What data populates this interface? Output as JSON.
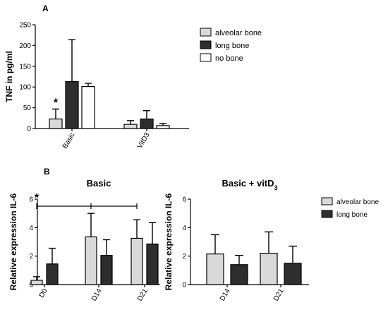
{
  "colors": {
    "alveolar": "#d9d9d9",
    "long": "#2e2e2e",
    "none": "#ffffff",
    "stroke": "#000000"
  },
  "chart_data": [
    {
      "panel": "A",
      "type": "bar",
      "title": "",
      "ylabel": "TNF in pg/ml",
      "ylim": [
        0,
        250
      ],
      "yticks": [
        0,
        50,
        100,
        150,
        200,
        250
      ],
      "categories": [
        "Basic",
        "VitD3"
      ],
      "series": [
        {
          "name": "alveolar bone",
          "color_key": "alveolar",
          "values": [
            23,
            10
          ],
          "errors": [
            24,
            9
          ]
        },
        {
          "name": "long bone",
          "color_key": "long",
          "values": [
            113,
            23
          ],
          "errors": [
            101,
            20
          ]
        },
        {
          "name": "no bone",
          "color_key": "none",
          "values": [
            101,
            7
          ],
          "errors": [
            8,
            5
          ]
        }
      ],
      "annotations": [
        {
          "text": "*",
          "category": "Basic",
          "series": "alveolar bone"
        }
      ],
      "legend": "right"
    },
    {
      "panel": "B",
      "type": "bar",
      "title": "Basic",
      "ylabel": "Relative expression IL-6",
      "ylim": [
        0,
        6
      ],
      "yticks": [
        0,
        2,
        4,
        6
      ],
      "categories": [
        "D0",
        "D14",
        "D21"
      ],
      "series": [
        {
          "name": "alveolar bone",
          "color_key": "alveolar",
          "values": [
            0.3,
            3.35,
            3.25
          ],
          "errors": [
            0.25,
            1.65,
            1.3
          ]
        },
        {
          "name": "long bone",
          "color_key": "long",
          "values": [
            1.45,
            2.05,
            2.85
          ],
          "errors": [
            1.1,
            1.1,
            1.5
          ]
        }
      ],
      "annotations": [
        {
          "text": "*",
          "bracket": [
            "D0",
            "D21"
          ]
        }
      ]
    },
    {
      "panel": "B",
      "type": "bar",
      "title": "Basic + vitD",
      "title_sub": "3",
      "ylabel": "Relative expression IL-6",
      "ylim": [
        0,
        6
      ],
      "yticks": [
        0,
        2,
        4,
        6
      ],
      "categories": [
        "D14",
        "D21"
      ],
      "series": [
        {
          "name": "alveolar bone",
          "color_key": "alveolar",
          "values": [
            2.15,
            2.2
          ],
          "errors": [
            1.35,
            1.5
          ]
        },
        {
          "name": "long bone",
          "color_key": "long",
          "values": [
            1.4,
            1.5
          ],
          "errors": [
            0.65,
            1.2
          ]
        }
      ],
      "legend": "right"
    }
  ],
  "labels": {
    "panel_a": "A",
    "panel_b": "B"
  }
}
